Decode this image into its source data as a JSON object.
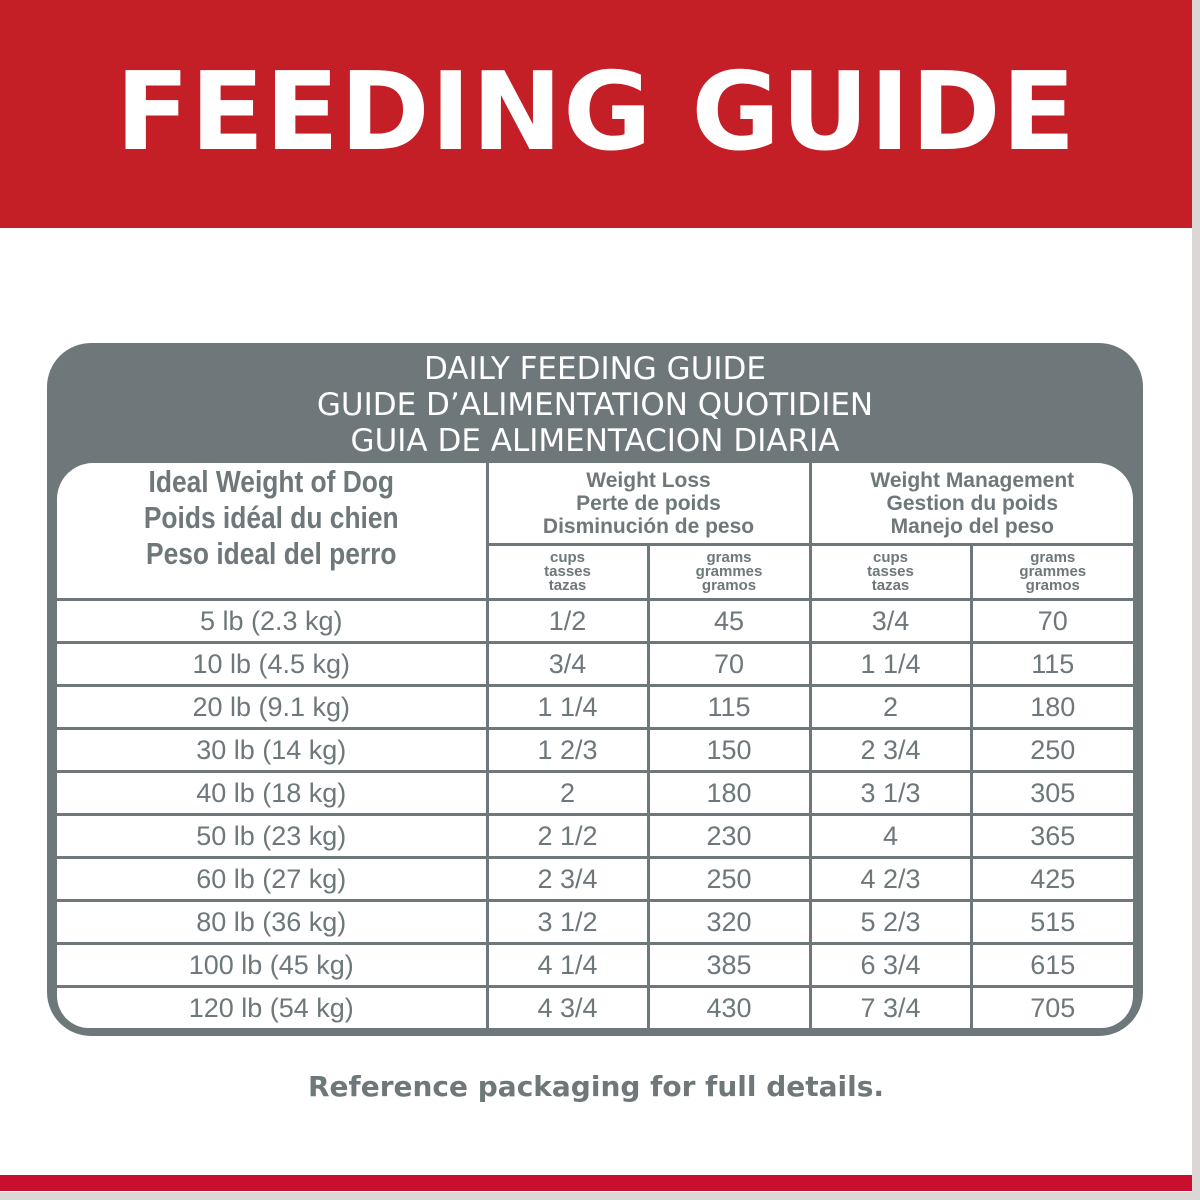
{
  "banner": {
    "title": "FEEDING GUIDE"
  },
  "card": {
    "title_lines": [
      "DAILY FEEDING GUIDE",
      "GUIDE D’ALIMENTATION QUOTIDIEN",
      "GUIA DE ALIMENTACION DIARIA"
    ]
  },
  "table": {
    "weight_header": [
      "Ideal Weight of Dog",
      "Poids idéal du chien",
      "Peso ideal del perro"
    ],
    "groups": [
      {
        "lines": [
          "Weight Loss",
          "Perte de poids",
          "Disminución de peso"
        ]
      },
      {
        "lines": [
          "Weight Management",
          "Gestion du poids",
          "Manejo del peso"
        ]
      }
    ],
    "units": {
      "cups": [
        "cups",
        "tasses",
        "tazas"
      ],
      "grams": [
        "grams",
        "grammes",
        "gramos"
      ]
    },
    "rows": [
      [
        "5 lb (2.3 kg)",
        "1/2",
        "45",
        "3/4",
        "70"
      ],
      [
        "10 lb (4.5 kg)",
        "3/4",
        "70",
        "1 1/4",
        "115"
      ],
      [
        "20 lb (9.1 kg)",
        "1 1/4",
        "115",
        "2",
        "180"
      ],
      [
        "30 lb (14 kg)",
        "1 2/3",
        "150",
        "2 3/4",
        "250"
      ],
      [
        "40 lb (18 kg)",
        "2",
        "180",
        "3 1/3",
        "305"
      ],
      [
        "50 lb (23 kg)",
        "2 1/2",
        "230",
        "4",
        "365"
      ],
      [
        "60 lb (27 kg)",
        "2 3/4",
        "250",
        "4 2/3",
        "425"
      ],
      [
        "80 lb (36 kg)",
        "3 1/2",
        "320",
        "5 2/3",
        "515"
      ],
      [
        "100 lb (45 kg)",
        "4 1/4",
        "385",
        "6 3/4",
        "615"
      ],
      [
        "120 lb (54 kg)",
        "4 3/4",
        "430",
        "7 3/4",
        "705"
      ]
    ]
  },
  "footer": {
    "note": "Reference packaging for full details."
  },
  "colors": {
    "brand_red": "#c41e26",
    "gray": "#6e777a"
  }
}
